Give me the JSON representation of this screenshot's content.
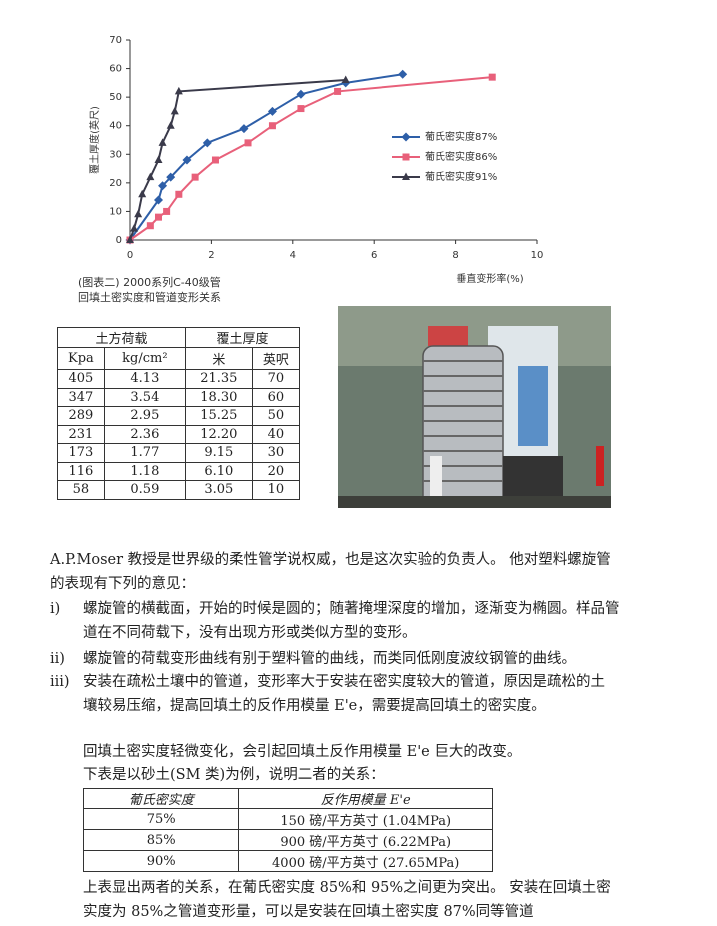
{
  "chart_data": {
    "type": "line",
    "y_label": "覆土厚度(英尺)",
    "x_label": "垂直变形率(%)",
    "xlim": [
      0,
      10
    ],
    "xticks": [
      0,
      2,
      4,
      6,
      8,
      10
    ],
    "ylim": [
      0,
      70
    ],
    "yticks": [
      0,
      10,
      20,
      30,
      40,
      50,
      60,
      70
    ],
    "legend": "right",
    "series": [
      {
        "name": "葡氏密实度87%",
        "color": "#2e5fa8",
        "marker": "diamond",
        "x": [
          0,
          0.7,
          0.8,
          1.0,
          1.4,
          1.9,
          2.8,
          3.5,
          4.2,
          5.3,
          6.7
        ],
        "values": [
          0,
          14,
          19,
          22,
          28,
          34,
          39,
          45,
          51,
          55,
          58
        ]
      },
      {
        "name": "葡氏密实度86%",
        "color": "#e8607a",
        "marker": "square",
        "x": [
          0,
          0.5,
          0.7,
          0.9,
          1.2,
          1.6,
          2.1,
          2.9,
          3.5,
          4.2,
          5.1,
          8.9
        ],
        "values": [
          0,
          5,
          8,
          10,
          16,
          22,
          28,
          34,
          40,
          46,
          52,
          57
        ]
      },
      {
        "name": "葡氏密实度91%",
        "color": "#3a3a4a",
        "marker": "triangle",
        "x": [
          0,
          0.1,
          0.2,
          0.3,
          0.5,
          0.7,
          0.8,
          1.0,
          1.1,
          1.2,
          5.3
        ],
        "values": [
          0,
          4,
          9,
          16,
          22,
          28,
          34,
          40,
          45,
          52,
          56
        ]
      }
    ]
  },
  "caption": [
    "(图表二) 2000系列C-40级管",
    "回填土密实度和管道变形关系"
  ],
  "load_table": {
    "group_headers": [
      "土方荷载",
      "覆土厚度"
    ],
    "headers": [
      "Kpa",
      "kg/cm²",
      "米",
      "英呎"
    ],
    "rows": [
      [
        "405",
        "4.13",
        "21.35",
        "70"
      ],
      [
        "347",
        "3.54",
        "18.30",
        "60"
      ],
      [
        "289",
        "2.95",
        "15.25",
        "50"
      ],
      [
        "231",
        "2.36",
        "12.20",
        "40"
      ],
      [
        "173",
        "1.77",
        "9.15",
        "30"
      ],
      [
        "116",
        "1.18",
        "6.10",
        "20"
      ],
      [
        "58",
        "0.59",
        "3.05",
        "10"
      ]
    ]
  },
  "intro": "A.P.Moser 教授是世界级的柔性管学说权威，也是这次实验的负责人。 他对塑料螺旋管的表现有下列的意见：",
  "points": [
    {
      "marker": "i)",
      "text": "螺旋管的横截面，开始的时候是圆的；随著掩埋深度的增加，逐渐变为椭圆。样品管道在不同荷载下，没有出现方形或类似方型的变形。"
    },
    {
      "marker": "ii)",
      "text": "螺旋管的荷载变形曲线有别于塑料管的曲线，而类同低刚度波纹钢管的曲线。"
    },
    {
      "marker": "iii)",
      "text": "安装在疏松土壤中的管道，变形率大于安装在密实度较大的管道，原因是疏松的土壤较易压缩，提高回填土的反作用模量 E'e，需要提高回填土的密实度。"
    }
  ],
  "notes": [
    "回填土密实度轻微变化，会引起回填土反作用模量 E'e 巨大的改变。",
    "下表是以砂土(SM 类)为例，说明二者的关系："
  ],
  "modulus_table": {
    "headers": [
      "葡氏密实度",
      "反作用模量 E'e"
    ],
    "rows": [
      [
        "75%",
        "150 磅/平方英寸 (1.04MPa)"
      ],
      [
        "85%",
        "900 磅/平方英寸 (6.22MPa)"
      ],
      [
        "90%",
        "4000 磅/平方英寸 (27.65MPa)"
      ]
    ]
  },
  "conclusion": "上表显出两者的关系，在葡氏密实度 85%和 95%之间更为突出。 安装在回填土密实度为 85%之管道变形量，可以是安装在回填土密实度 87%同等管道"
}
